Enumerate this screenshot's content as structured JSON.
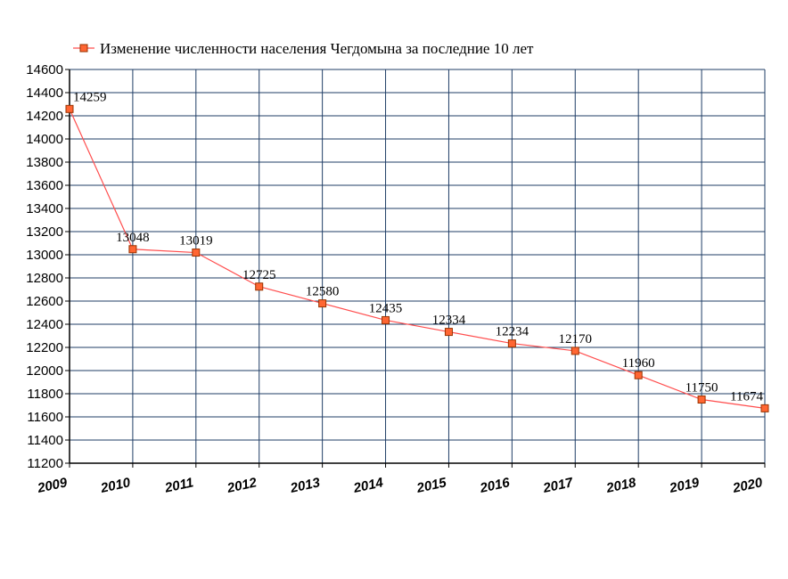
{
  "chart_data": {
    "type": "line",
    "title": "",
    "xlabel": "",
    "ylabel": "",
    "categories": [
      "2009",
      "2010",
      "2011",
      "2012",
      "2013",
      "2014",
      "2015",
      "2016",
      "2017",
      "2018",
      "2019",
      "2020"
    ],
    "series": [
      {
        "name": "Изменение численности населения Чегдомына за последние 10 лет",
        "values": [
          14259,
          13048,
          13019,
          12725,
          12580,
          12435,
          12334,
          12234,
          12170,
          11960,
          11750,
          11674
        ],
        "labels": [
          "14259",
          "13048",
          "13019",
          "12725",
          "12580",
          "12435",
          "12334",
          "12234",
          "12170",
          "11960",
          "11750",
          "11674"
        ]
      }
    ],
    "ylim": [
      11200,
      14600
    ],
    "yticks": [
      "11200",
      "11400",
      "11600",
      "11800",
      "12000",
      "12200",
      "12400",
      "12600",
      "12800",
      "13000",
      "13200",
      "13400",
      "13600",
      "13800",
      "14000",
      "14200",
      "14400",
      "14600"
    ],
    "grid": true,
    "legend_position": "top",
    "colors": {
      "line": "#ff4d4d",
      "marker_fill": "#ff6633",
      "marker_stroke": "#993300",
      "grid": "#1f3d66",
      "axis": "#000000"
    }
  }
}
